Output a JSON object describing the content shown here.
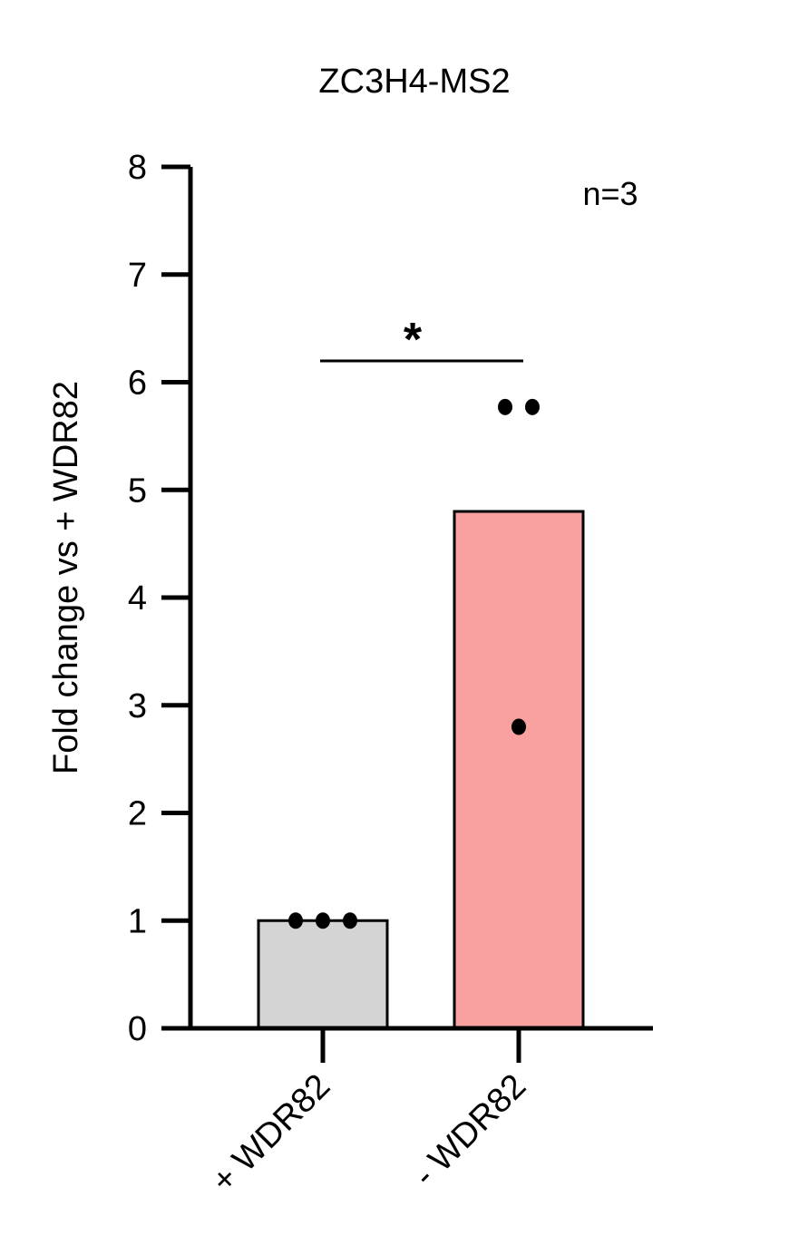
{
  "chart_data": {
    "type": "bar",
    "title": "ZC3H4-MS2",
    "xlabel": "",
    "ylabel": "Fold change vs  + WDR82",
    "ylim": [
      0,
      8
    ],
    "yticks": [
      "0",
      "1",
      "2",
      "3",
      "4",
      "5",
      "6",
      "7",
      "8"
    ],
    "categories": [
      "+ WDR82",
      "- WDR82"
    ],
    "values": [
      1.0,
      4.8
    ],
    "points": [
      [
        1.0,
        1.0,
        1.0
      ],
      [
        5.77,
        5.77,
        2.8
      ]
    ],
    "bar_colors": [
      "#d4d4d4",
      "#f9a0a0"
    ],
    "significance": {
      "label": "*",
      "between": [
        "+ WDR82",
        "- WDR82"
      ]
    },
    "annotation": "n=3",
    "grid": false,
    "legend": "none"
  }
}
